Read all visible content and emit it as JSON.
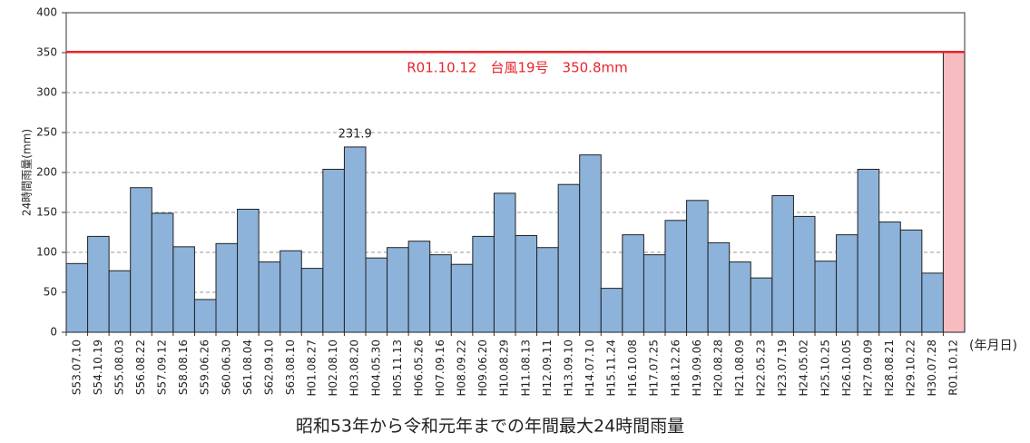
{
  "chart_data": {
    "type": "bar",
    "title": "昭和53年から令和元年までの年間最大24時間雨量",
    "y_label": "24時間雨量(mm)",
    "x_label": "(年月日)",
    "annotation": "R01.10.12　台風19号　350.8mm",
    "reference_line": 350.8,
    "reference_color": "#e8242a",
    "categories": [
      "S53.07.10",
      "S54.10.19",
      "S55.08.03",
      "S56.08.22",
      "S57.09.12",
      "S58.08.16",
      "S59.06.26",
      "S60.06.30",
      "S61.08.04",
      "S62.09.10",
      "S63.08.10",
      "H01.08.27",
      "H02.08.10",
      "H03.08.20",
      "H04.05.30",
      "H05.11.13",
      "H06.05.26",
      "H07.09.16",
      "H08.09.22",
      "H09.06.20",
      "H10.08.29",
      "H11.08.13",
      "H12.09.11",
      "H13.09.10",
      "H14.07.10",
      "H15.11.24",
      "H16.10.08",
      "H17.07.25",
      "H18.12.26",
      "H19.09.06",
      "H20.08.28",
      "H21.08.09",
      "H22.05.23",
      "H23.07.19",
      "H24.05.02",
      "H25.10.25",
      "H26.10.05",
      "H27.09.09",
      "H28.08.21",
      "H29.10.22",
      "H30.07.28",
      "R01.10.12"
    ],
    "values": [
      86,
      120,
      77,
      181,
      149,
      107,
      41,
      111,
      154,
      88,
      102,
      80,
      204,
      231.9,
      93,
      106,
      114,
      97,
      85,
      120,
      174,
      121,
      106,
      185,
      222,
      55,
      122,
      97,
      140,
      165,
      112,
      88,
      68,
      171,
      145,
      89,
      122,
      204,
      138,
      128,
      74,
      350.8
    ],
    "value_labels": [
      null,
      null,
      null,
      null,
      null,
      null,
      null,
      null,
      null,
      null,
      null,
      null,
      null,
      "231.9",
      null,
      null,
      null,
      null,
      null,
      null,
      null,
      null,
      null,
      null,
      null,
      null,
      null,
      null,
      null,
      null,
      null,
      null,
      null,
      null,
      null,
      null,
      null,
      null,
      null,
      null,
      null,
      null
    ],
    "colors": [
      "#8db3da",
      "#8db3da",
      "#8db3da",
      "#8db3da",
      "#8db3da",
      "#8db3da",
      "#8db3da",
      "#8db3da",
      "#8db3da",
      "#8db3da",
      "#8db3da",
      "#8db3da",
      "#8db3da",
      "#8db3da",
      "#8db3da",
      "#8db3da",
      "#8db3da",
      "#8db3da",
      "#8db3da",
      "#8db3da",
      "#8db3da",
      "#8db3da",
      "#8db3da",
      "#8db3da",
      "#8db3da",
      "#8db3da",
      "#8db3da",
      "#8db3da",
      "#8db3da",
      "#8db3da",
      "#8db3da",
      "#8db3da",
      "#8db3da",
      "#8db3da",
      "#8db3da",
      "#8db3da",
      "#8db3da",
      "#8db3da",
      "#8db3da",
      "#8db3da",
      "#8db3da",
      "#f7bcc0"
    ],
    "ylim": [
      0,
      400
    ],
    "yticks": [
      0,
      50,
      100,
      150,
      200,
      250,
      300,
      350,
      400
    ],
    "grid": true
  }
}
